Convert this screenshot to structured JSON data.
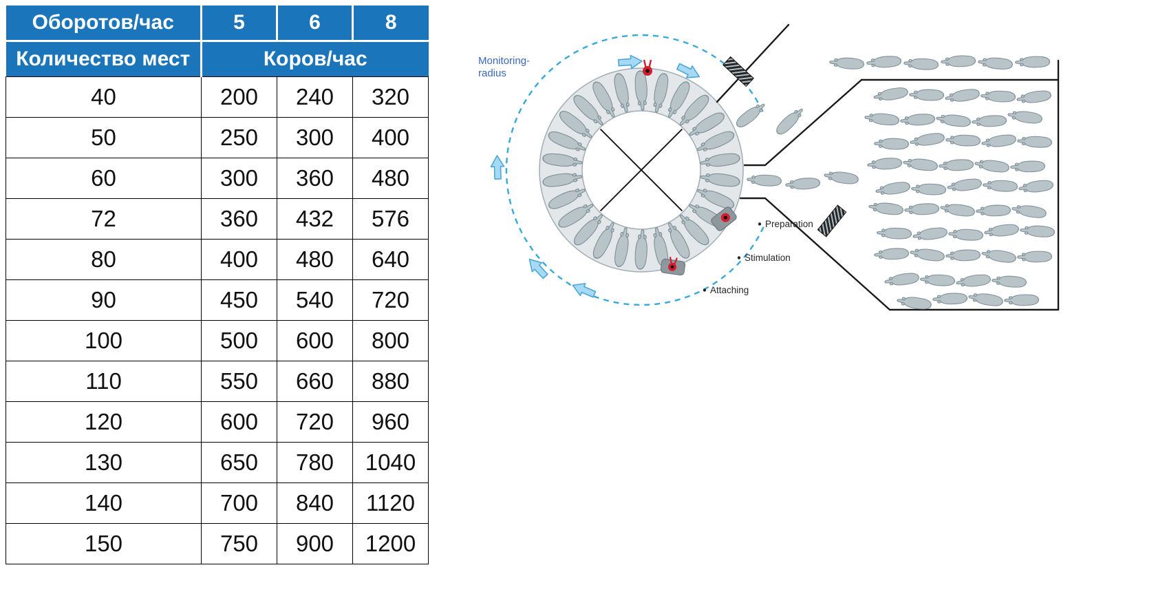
{
  "table": {
    "header": {
      "rotations_label": "Оборотов/час",
      "rotation_values": [
        "5",
        "6",
        "8"
      ],
      "places_label": "Количество мест",
      "cows_label": "Коров/час",
      "header_bg": "#1b75bb",
      "header_text_color": "#ffffff"
    },
    "rows": [
      {
        "places": "40",
        "values": [
          "200",
          "240",
          "320"
        ]
      },
      {
        "places": "50",
        "values": [
          "250",
          "300",
          "400"
        ]
      },
      {
        "places": "60",
        "values": [
          "300",
          "360",
          "480"
        ]
      },
      {
        "places": "72",
        "values": [
          "360",
          "432",
          "576"
        ]
      },
      {
        "places": "80",
        "values": [
          "400",
          "480",
          "640"
        ]
      },
      {
        "places": "90",
        "values": [
          "450",
          "540",
          "720"
        ]
      },
      {
        "places": "100",
        "values": [
          "500",
          "600",
          "800"
        ]
      },
      {
        "places": "110",
        "values": [
          "550",
          "660",
          "880"
        ]
      },
      {
        "places": "120",
        "values": [
          "600",
          "720",
          "960"
        ]
      },
      {
        "places": "130",
        "values": [
          "650",
          "780",
          "1040"
        ]
      },
      {
        "places": "140",
        "values": [
          "700",
          "840",
          "1120"
        ]
      },
      {
        "places": "150",
        "values": [
          "750",
          "900",
          "1200"
        ]
      }
    ]
  },
  "diagram": {
    "monitoring_label": {
      "line1": "Monitoring-",
      "line2": "radius",
      "color": "#3a68c0"
    },
    "steps": [
      {
        "label": "Preparation"
      },
      {
        "label": "Stimulation"
      },
      {
        "label": "Attaching"
      }
    ],
    "colors": {
      "monitoring_circle": "#35a9db",
      "arrow_fill": "#a6d9f3",
      "arrow_stroke": "#4ea6d8",
      "platform_fill": "#e3e7e9",
      "platform_stroke": "#a0adb4",
      "cow_fill": "#b9c4c9",
      "cow_stroke": "#7f919a",
      "wall_color": "#1a1a1a",
      "unit_red": "#d51c2c"
    }
  }
}
